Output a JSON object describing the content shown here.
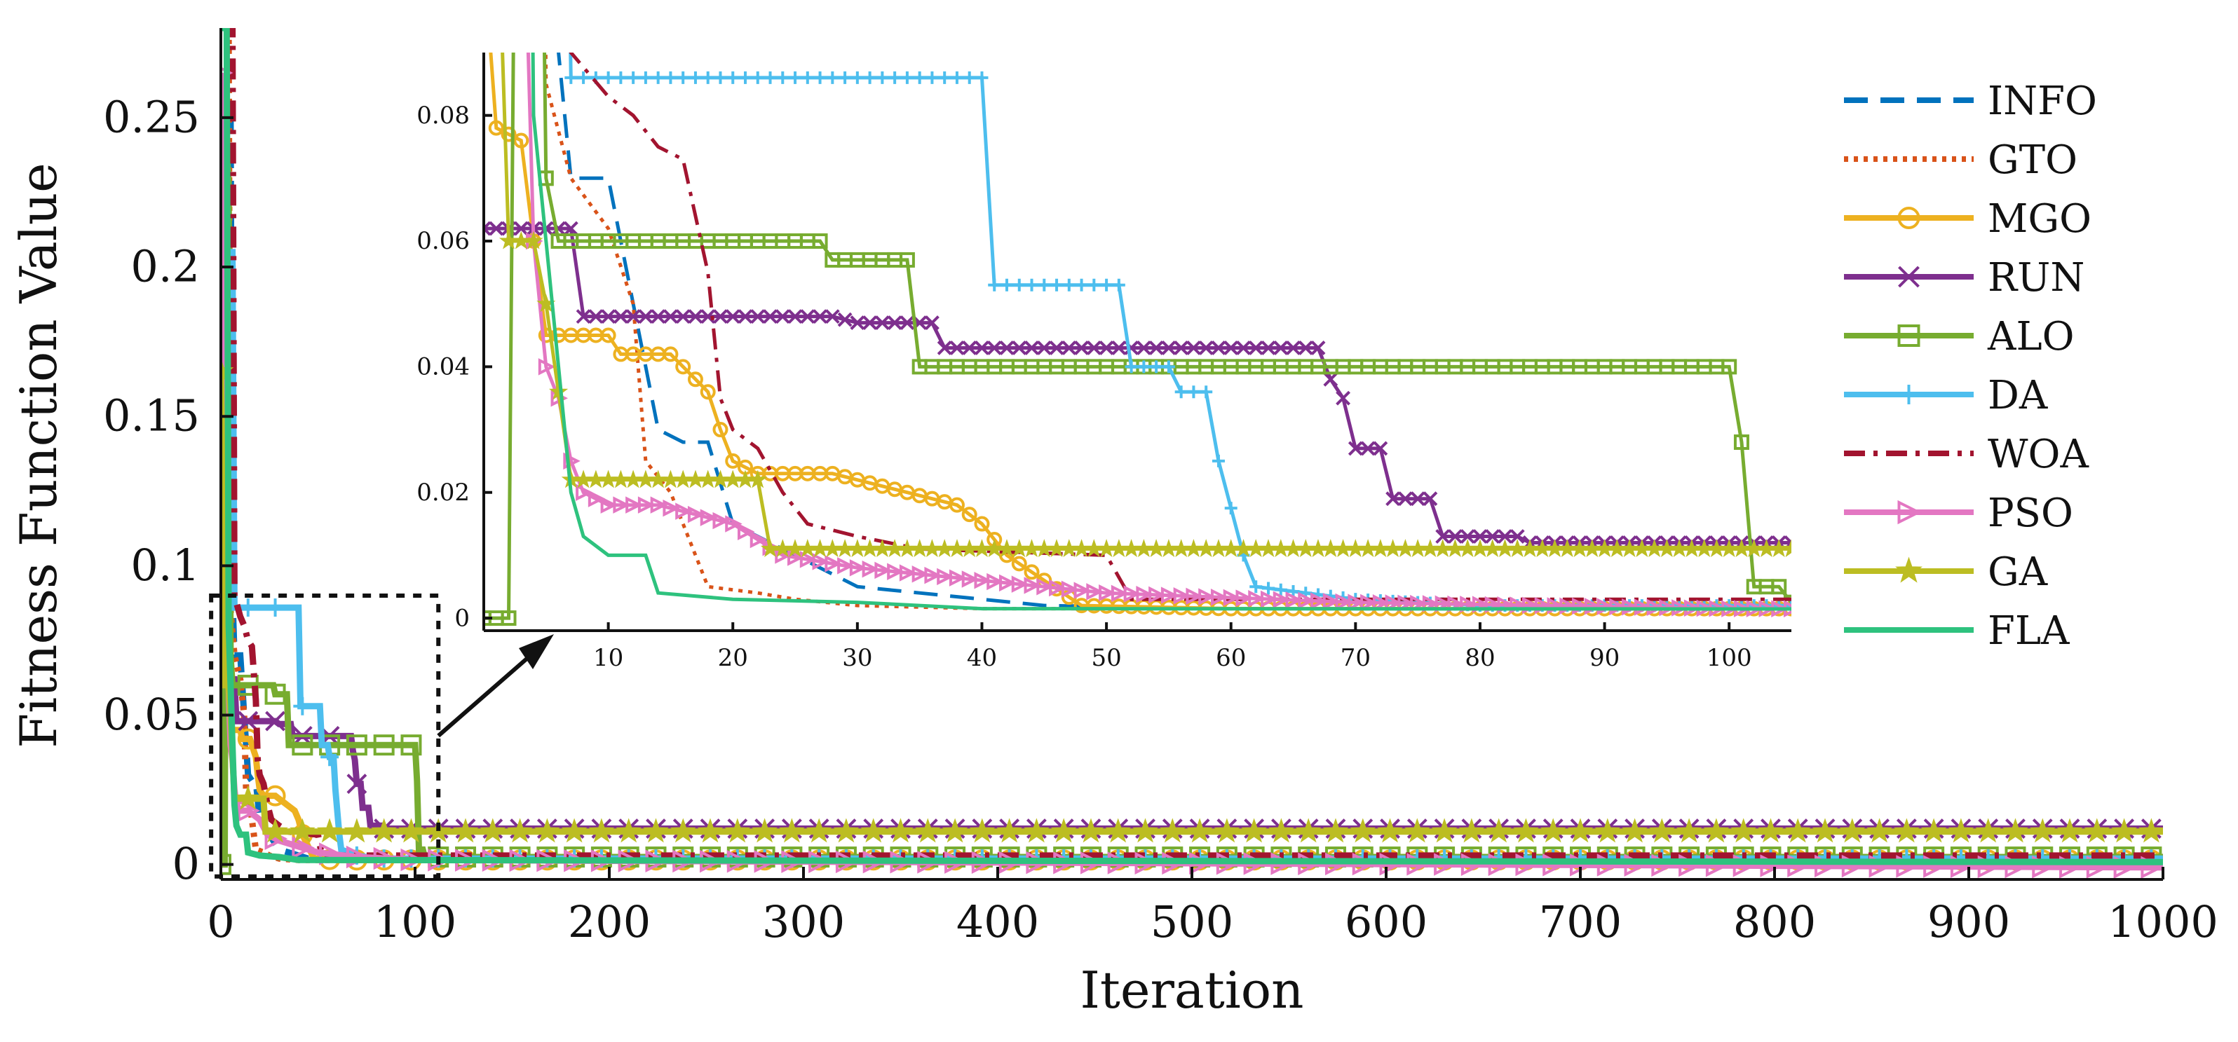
{
  "chart_data": {
    "type": "line",
    "xlabel": "Iteration",
    "ylabel": "Fitness Function Value",
    "main": {
      "xlim": [
        0,
        1000
      ],
      "ylim": [
        -0.005,
        0.28
      ],
      "xticks": [
        0,
        100,
        200,
        300,
        400,
        500,
        600,
        700,
        800,
        900,
        1000
      ],
      "xtick_labels": [
        "0",
        "100",
        "200",
        "300",
        "400",
        "500",
        "600",
        "700",
        "800",
        "900",
        "1000"
      ],
      "yticks": [
        0,
        0.05,
        0.1,
        0.15,
        0.2,
        0.25
      ],
      "ytick_labels": [
        "0",
        "0.05",
        "0.1",
        "0.15",
        "0.2",
        "0.25"
      ]
    },
    "inset": {
      "xlim": [
        0,
        105
      ],
      "ylim": [
        -0.002,
        0.09
      ],
      "xticks": [
        10,
        20,
        30,
        40,
        50,
        60,
        70,
        80,
        90,
        100
      ],
      "xtick_labels": [
        "10",
        "20",
        "30",
        "40",
        "50",
        "60",
        "70",
        "80",
        "90",
        "100"
      ],
      "yticks": [
        0,
        0.02,
        0.04,
        0.06,
        0.08
      ],
      "ytick_labels": [
        "0",
        "0.02",
        "0.04",
        "0.06",
        "0.08"
      ],
      "zoom_box": {
        "x": [
          -5,
          112
        ],
        "y": [
          -0.004,
          0.09
        ]
      }
    },
    "legend_position": "right, outside",
    "series": [
      {
        "name": "INFO",
        "color": "#0072BD",
        "dash": "dashed",
        "marker": "none",
        "points": [
          [
            0,
            0.25
          ],
          [
            5,
            0.25
          ],
          [
            6,
            0.09
          ],
          [
            7,
            0.07
          ],
          [
            10,
            0.07
          ],
          [
            11,
            0.06
          ],
          [
            14,
            0.03
          ],
          [
            16,
            0.028
          ],
          [
            18,
            0.028
          ],
          [
            20,
            0.015
          ],
          [
            25,
            0.01
          ],
          [
            30,
            0.005
          ],
          [
            35,
            0.004
          ],
          [
            40,
            0.003
          ],
          [
            45,
            0.002
          ],
          [
            60,
            0.0015
          ],
          [
            1000,
            0.0015
          ]
        ]
      },
      {
        "name": "GTO",
        "color": "#D95319",
        "dash": "dotted",
        "marker": "none",
        "points": [
          [
            0,
            0.28
          ],
          [
            4,
            0.28
          ],
          [
            5,
            0.085
          ],
          [
            7,
            0.07
          ],
          [
            10,
            0.062
          ],
          [
            12,
            0.05
          ],
          [
            13,
            0.025
          ],
          [
            15,
            0.02
          ],
          [
            17,
            0.01
          ],
          [
            18,
            0.005
          ],
          [
            22,
            0.004
          ],
          [
            25,
            0.003
          ],
          [
            30,
            0.002
          ],
          [
            40,
            0.0015
          ],
          [
            1000,
            0.0015
          ]
        ]
      },
      {
        "name": "MGO",
        "color": "#EDB120",
        "dash": "solid",
        "marker": "circle",
        "points": [
          [
            0,
            0.105
          ],
          [
            1,
            0.078
          ],
          [
            2,
            0.077
          ],
          [
            3,
            0.076
          ],
          [
            4,
            0.06
          ],
          [
            5,
            0.045
          ],
          [
            10,
            0.045
          ],
          [
            11,
            0.042
          ],
          [
            15,
            0.042
          ],
          [
            17,
            0.038
          ],
          [
            18,
            0.036
          ],
          [
            19,
            0.03
          ],
          [
            20,
            0.025
          ],
          [
            22,
            0.023
          ],
          [
            28,
            0.023
          ],
          [
            30,
            0.022
          ],
          [
            34,
            0.02
          ],
          [
            38,
            0.018
          ],
          [
            40,
            0.015
          ],
          [
            42,
            0.01
          ],
          [
            45,
            0.006
          ],
          [
            48,
            0.002
          ],
          [
            60,
            0.0015
          ],
          [
            1000,
            0.0015
          ]
        ]
      },
      {
        "name": "RUN",
        "color": "#7E2F8E",
        "dash": "solid",
        "marker": "x",
        "points": [
          [
            0,
            0.062
          ],
          [
            7,
            0.062
          ],
          [
            8,
            0.048
          ],
          [
            28,
            0.048
          ],
          [
            30,
            0.047
          ],
          [
            36,
            0.047
          ],
          [
            37,
            0.043
          ],
          [
            67,
            0.043
          ],
          [
            68,
            0.038
          ],
          [
            69,
            0.035
          ],
          [
            70,
            0.027
          ],
          [
            72,
            0.027
          ],
          [
            73,
            0.019
          ],
          [
            76,
            0.019
          ],
          [
            77,
            0.013
          ],
          [
            83,
            0.013
          ],
          [
            84,
            0.012
          ],
          [
            1000,
            0.012
          ]
        ]
      },
      {
        "name": "ALO",
        "color": "#77AC30",
        "dash": "solid",
        "marker": "square",
        "points": [
          [
            0,
            0
          ],
          [
            2,
            0
          ],
          [
            3,
            0.24
          ],
          [
            4,
            0.228
          ],
          [
            5,
            0.07
          ],
          [
            6,
            0.06
          ],
          [
            27,
            0.06
          ],
          [
            28,
            0.057
          ],
          [
            34,
            0.057
          ],
          [
            35,
            0.04
          ],
          [
            100,
            0.04
          ],
          [
            101,
            0.028
          ],
          [
            102,
            0.005
          ],
          [
            104,
            0.005
          ],
          [
            105,
            0.0025
          ],
          [
            1000,
            0.0025
          ]
        ]
      },
      {
        "name": "DA",
        "color": "#4DBEEE",
        "dash": "solid",
        "marker": "plus",
        "points": [
          [
            0,
            0.205
          ],
          [
            6,
            0.205
          ],
          [
            7,
            0.086
          ],
          [
            40,
            0.086
          ],
          [
            41,
            0.053
          ],
          [
            51,
            0.053
          ],
          [
            52,
            0.04
          ],
          [
            55,
            0.04
          ],
          [
            56,
            0.036
          ],
          [
            58,
            0.036
          ],
          [
            59,
            0.025
          ],
          [
            61,
            0.01
          ],
          [
            62,
            0.005
          ],
          [
            70,
            0.003
          ],
          [
            80,
            0.002
          ],
          [
            1000,
            0.002
          ]
        ]
      },
      {
        "name": "WOA",
        "color": "#A2142F",
        "dash": "dashdot",
        "marker": "none",
        "points": [
          [
            0,
            0.28
          ],
          [
            6,
            0.28
          ],
          [
            7,
            0.09
          ],
          [
            10,
            0.083
          ],
          [
            12,
            0.08
          ],
          [
            14,
            0.075
          ],
          [
            16,
            0.073
          ],
          [
            18,
            0.055
          ],
          [
            19,
            0.035
          ],
          [
            20,
            0.03
          ],
          [
            22,
            0.027
          ],
          [
            24,
            0.02
          ],
          [
            26,
            0.015
          ],
          [
            30,
            0.013
          ],
          [
            35,
            0.011
          ],
          [
            50,
            0.01
          ],
          [
            52,
            0.003
          ],
          [
            1000,
            0.003
          ]
        ]
      },
      {
        "name": "PSO",
        "color": "#E377C2",
        "dash": "solid",
        "marker": "triangle-right",
        "points": [
          [
            0,
            0.265
          ],
          [
            1,
            0.215
          ],
          [
            2,
            0.175
          ],
          [
            3,
            0.13
          ],
          [
            4,
            0.06
          ],
          [
            5,
            0.04
          ],
          [
            6,
            0.035
          ],
          [
            7,
            0.025
          ],
          [
            8,
            0.02
          ],
          [
            10,
            0.018
          ],
          [
            14,
            0.018
          ],
          [
            20,
            0.015
          ],
          [
            24,
            0.01
          ],
          [
            30,
            0.008
          ],
          [
            40,
            0.006
          ],
          [
            50,
            0.004
          ],
          [
            70,
            0.0025
          ],
          [
            100,
            0.0015
          ],
          [
            1000,
            -0.001
          ]
        ]
      },
      {
        "name": "GA",
        "color": "#BCBD22",
        "dash": "solid",
        "marker": "star",
        "points": [
          [
            0,
            0.165
          ],
          [
            1,
            0.12
          ],
          [
            2,
            0.06
          ],
          [
            4,
            0.06
          ],
          [
            5,
            0.05
          ],
          [
            7,
            0.022
          ],
          [
            22,
            0.022
          ],
          [
            23,
            0.011
          ],
          [
            1000,
            0.011
          ]
        ]
      },
      {
        "name": "FLA",
        "color": "#2EC27E",
        "dash": "solid",
        "marker": "none",
        "points": [
          [
            0,
            0.28
          ],
          [
            3,
            0.28
          ],
          [
            4,
            0.08
          ],
          [
            5,
            0.06
          ],
          [
            6,
            0.04
          ],
          [
            7,
            0.02
          ],
          [
            8,
            0.013
          ],
          [
            10,
            0.01
          ],
          [
            13,
            0.01
          ],
          [
            14,
            0.004
          ],
          [
            20,
            0.003
          ],
          [
            30,
            0.0025
          ],
          [
            40,
            0.0015
          ],
          [
            1000,
            0.0008
          ]
        ]
      }
    ]
  }
}
